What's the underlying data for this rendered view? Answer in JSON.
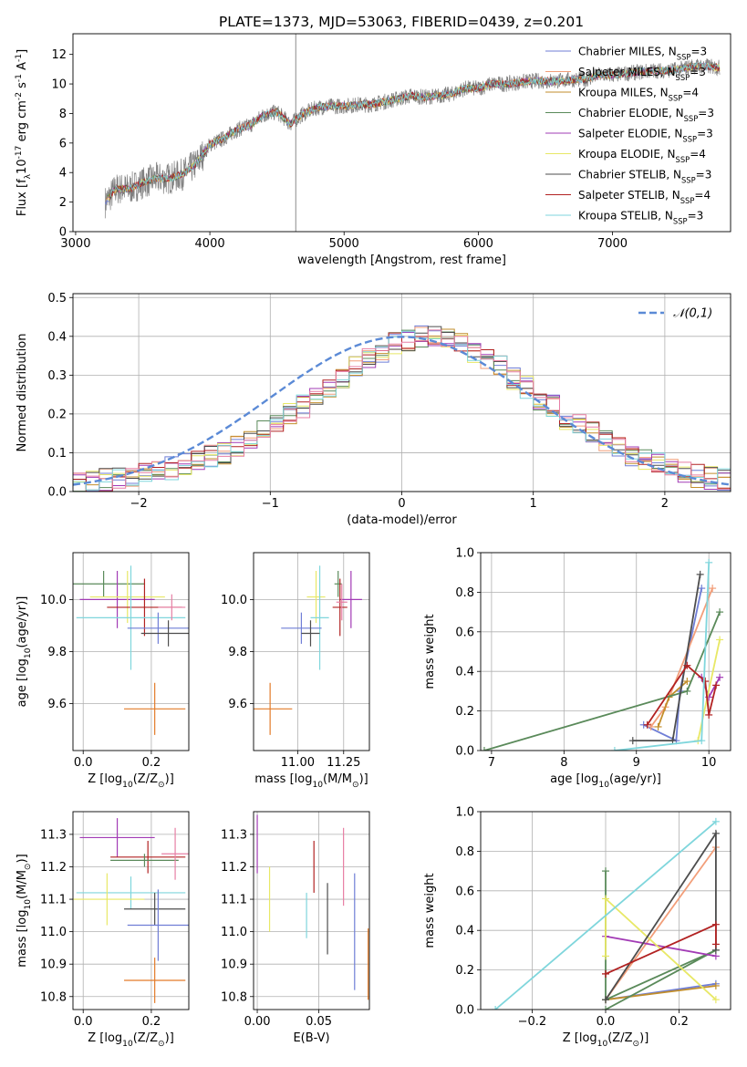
{
  "chart_data": [
    {
      "id": "spectrum",
      "type": "line",
      "title": "PLATE=1373, MJD=53063, FIBERID=0439, z=0.201",
      "xlabel": "wavelength [Angstrom, rest frame]",
      "ylabel": "Flux [f$_\\lambda$10$^{-17}$ erg cm$^{-2}$ s$^{-1}$ A$^{-1}$]",
      "xlim": [
        2980,
        7880
      ],
      "ylim": [
        0,
        13.4
      ],
      "xticks": [
        3000,
        4000,
        5000,
        6000,
        7000
      ],
      "yticks": [
        0,
        2,
        4,
        6,
        8,
        10,
        12
      ],
      "grid": false,
      "legend_position": "right",
      "data_x": [
        3220,
        3300,
        3400,
        3500,
        3600,
        3700,
        3800,
        3900,
        4000,
        4100,
        4200,
        4300,
        4400,
        4500,
        4600,
        4700,
        4800,
        4900,
        5000,
        5100,
        5200,
        5300,
        5400,
        5500,
        5600,
        5700,
        5800,
        5900,
        6000,
        6100,
        6200,
        6300,
        6400,
        6500,
        6600,
        6700,
        6800,
        6900,
        7000,
        7100,
        7200,
        7300,
        7400,
        7500,
        7600,
        7700,
        7800
      ],
      "data_y": [
        2.0,
        2.9,
        2.9,
        3.3,
        3.6,
        3.6,
        3.9,
        4.6,
        5.9,
        6.3,
        6.9,
        7.2,
        7.9,
        8.1,
        7.3,
        8.0,
        8.4,
        8.5,
        8.5,
        8.6,
        8.6,
        8.8,
        9.0,
        9.2,
        9.1,
        9.2,
        9.3,
        9.7,
        9.7,
        10.0,
        10.0,
        10.1,
        10.2,
        10.2,
        10.2,
        10.3,
        10.3,
        10.6,
        10.6,
        10.7,
        10.8,
        10.9,
        10.9,
        11.0,
        11.2,
        11.2,
        11.1
      ],
      "data_color": "#808080",
      "series": [
        {
          "name": "Chabrier MILES, N$_{SSP}$=3",
          "color": "#6f7ed6"
        },
        {
          "name": "Salpeter MILES, N$_{SSP}$=3",
          "color": "#f29e79"
        },
        {
          "name": "Kroupa MILES, N$_{SSP}$=4",
          "color": "#c28e2b"
        },
        {
          "name": "Chabrier ELODIE, N$_{SSP}$=3",
          "color": "#5a8a5a"
        },
        {
          "name": "Salpeter ELODIE, N$_{SSP}$=3",
          "color": "#a23bb5"
        },
        {
          "name": "Kroupa ELODIE, N$_{SSP}$=4",
          "color": "#e8e866"
        },
        {
          "name": "Chabrier STELIB, N$_{SSP}$=3",
          "color": "#4d4d4d"
        },
        {
          "name": "Salpeter STELIB, N$_{SSP}$=4",
          "color": "#b22222"
        },
        {
          "name": "Kroupa STELIB, N$_{SSP}$=3",
          "color": "#7fd6dc"
        }
      ]
    },
    {
      "id": "residuals",
      "type": "line",
      "xlabel": "(data-model)/error",
      "ylabel": "Normed distribution",
      "xlim": [
        -2.5,
        2.5
      ],
      "ylim": [
        0,
        0.51
      ],
      "xticks": [
        -2,
        -1,
        0,
        1,
        2
      ],
      "yticks": [
        0.0,
        0.1,
        0.2,
        0.3,
        0.4,
        0.5
      ],
      "grid": true,
      "legend_position": "top-right",
      "gaussian_label": "$\\mathcal{N}(0,1)$",
      "gaussian_color": "#5b8ad6",
      "bin_edges_start": -2.5,
      "bin_width": 0.1,
      "hist_base": [
        0.02,
        0.025,
        0.03,
        0.035,
        0.04,
        0.045,
        0.05,
        0.06,
        0.07,
        0.08,
        0.09,
        0.1,
        0.12,
        0.14,
        0.16,
        0.18,
        0.2,
        0.22,
        0.24,
        0.27,
        0.29,
        0.32,
        0.34,
        0.36,
        0.38,
        0.39,
        0.4,
        0.4,
        0.39,
        0.38,
        0.36,
        0.34,
        0.32,
        0.29,
        0.27,
        0.24,
        0.22,
        0.19,
        0.17,
        0.15,
        0.13,
        0.11,
        0.09,
        0.08,
        0.07,
        0.06,
        0.05,
        0.04,
        0.035,
        0.03
      ],
      "hist_colors": [
        "#6f7ed6",
        "#f29e79",
        "#c28e2b",
        "#5a8a5a",
        "#a23bb5",
        "#e8e866",
        "#4d4d4d",
        "#b22222",
        "#7fd6dc",
        "#e77fa4"
      ]
    },
    {
      "id": "z-age",
      "type": "scatter",
      "xlabel": "Z [log$_{10}$(Z/Z$_\\odot$)]",
      "ylabel": "age  [log$_{10}$(age/yr)]",
      "xlim": [
        -0.03,
        0.31
      ],
      "ylim": [
        9.42,
        10.18
      ],
      "xticks": [
        0.0,
        0.2
      ],
      "yticks": [
        9.6,
        9.8,
        10.0
      ],
      "grid": true,
      "points": [
        {
          "x": 0.06,
          "y": 10.06,
          "xerr": 0.12,
          "yerr": 0.05,
          "color": "#5a8a5a"
        },
        {
          "x": 0.1,
          "y": 10.0,
          "xerr": 0.11,
          "yerr": 0.11,
          "color": "#a23bb5"
        },
        {
          "x": 0.13,
          "y": 10.01,
          "xerr": 0.11,
          "yerr": 0.1,
          "color": "#e8e866"
        },
        {
          "x": 0.18,
          "y": 9.97,
          "xerr": 0.11,
          "yerr": 0.11,
          "color": "#b22222"
        },
        {
          "x": 0.14,
          "y": 9.93,
          "xerr": 0.16,
          "yerr": 0.2,
          "color": "#7fd6dc"
        },
        {
          "x": 0.22,
          "y": 9.89,
          "xerr": 0.09,
          "yerr": 0.06,
          "color": "#6f7ed6"
        },
        {
          "x": 0.25,
          "y": 9.87,
          "xerr": 0.08,
          "yerr": 0.05,
          "color": "#4d4d4d"
        },
        {
          "x": 0.26,
          "y": 9.97,
          "xerr": 0.04,
          "yerr": 0.05,
          "color": "#e77fa4"
        },
        {
          "x": 0.21,
          "y": 9.58,
          "xerr": 0.09,
          "yerr": 0.1,
          "color": "#e37b29"
        }
      ]
    },
    {
      "id": "mass-age",
      "type": "scatter",
      "xlabel": "mass [log$_{10}$(M/M$_\\odot$)]",
      "ylabel": "",
      "xlim": [
        10.76,
        11.39
      ],
      "ylim": [
        9.42,
        10.18
      ],
      "xticks": [
        11.0,
        11.25
      ],
      "yticks": [
        9.6,
        9.8,
        10.0
      ],
      "grid": true,
      "points": [
        {
          "x": 11.22,
          "y": 10.06,
          "xerr": 0.02,
          "yerr": 0.05,
          "color": "#5a8a5a"
        },
        {
          "x": 11.29,
          "y": 10.0,
          "xerr": 0.06,
          "yerr": 0.11,
          "color": "#a23bb5"
        },
        {
          "x": 11.1,
          "y": 10.01,
          "xerr": 0.05,
          "yerr": 0.1,
          "color": "#e8e866"
        },
        {
          "x": 11.23,
          "y": 9.97,
          "xerr": 0.04,
          "yerr": 0.11,
          "color": "#b22222"
        },
        {
          "x": 11.12,
          "y": 9.93,
          "xerr": 0.05,
          "yerr": 0.2,
          "color": "#7fd6dc"
        },
        {
          "x": 11.02,
          "y": 9.89,
          "xerr": 0.11,
          "yerr": 0.06,
          "color": "#6f7ed6"
        },
        {
          "x": 11.07,
          "y": 9.87,
          "xerr": 0.05,
          "yerr": 0.05,
          "color": "#4d4d4d"
        },
        {
          "x": 11.24,
          "y": 9.99,
          "xerr": 0.03,
          "yerr": 0.07,
          "color": "#e77fa4"
        },
        {
          "x": 10.85,
          "y": 9.58,
          "xerr": 0.12,
          "yerr": 0.1,
          "color": "#e37b29"
        }
      ]
    },
    {
      "id": "age-weight",
      "type": "line",
      "xlabel": "age  [log$_{10}$(age/yr)]",
      "ylabel": "mass weight",
      "xlim": [
        6.85,
        10.3
      ],
      "ylim": [
        0,
        1.0
      ],
      "xticks": [
        7,
        8,
        9,
        10
      ],
      "yticks": [
        0.0,
        0.2,
        0.4,
        0.6,
        0.8,
        1.0
      ],
      "grid": true,
      "series": [
        {
          "color": "#6f7ed6",
          "x": [
            9.1,
            9.55,
            9.6,
            9.9
          ],
          "y": [
            0.13,
            0.05,
            0.3,
            0.82
          ]
        },
        {
          "color": "#f29e79",
          "x": [
            9.2,
            9.4,
            10.05
          ],
          "y": [
            0.12,
            0.22,
            0.82
          ]
        },
        {
          "color": "#c28e2b",
          "x": [
            9.3,
            9.45,
            9.7
          ],
          "y": [
            0.12,
            0.27,
            0.35
          ]
        },
        {
          "color": "#5a8a5a",
          "x": [
            6.9,
            9.7,
            10.15
          ],
          "y": [
            0.0,
            0.3,
            0.7
          ]
        },
        {
          "color": "#a23bb5",
          "x": [
            9.9,
            10.0,
            10.15
          ],
          "y": [
            0.37,
            0.27,
            0.37
          ]
        },
        {
          "color": "#e8e866",
          "x": [
            9.85,
            10.15
          ],
          "y": [
            0.05,
            0.56
          ]
        },
        {
          "color": "#4d4d4d",
          "x": [
            8.95,
            9.5,
            9.88
          ],
          "y": [
            0.05,
            0.05,
            0.89
          ]
        },
        {
          "color": "#b22222",
          "x": [
            9.15,
            9.7,
            9.95,
            10.0,
            10.1
          ],
          "y": [
            0.13,
            0.43,
            0.35,
            0.18,
            0.33
          ]
        },
        {
          "color": "#7fd6dc",
          "x": [
            8.7,
            9.9,
            10.0
          ],
          "y": [
            0.0,
            0.05,
            0.95
          ]
        }
      ]
    },
    {
      "id": "z-mass",
      "type": "scatter",
      "xlabel": "Z [log$_{10}$(Z/Z$_\\odot$)]",
      "ylabel": "mass [log$_{10}$(M/M$_\\odot$)]",
      "xlim": [
        -0.03,
        0.31
      ],
      "ylim": [
        10.76,
        11.37
      ],
      "xticks": [
        0.0,
        0.2
      ],
      "yticks": [
        10.8,
        10.9,
        11.0,
        11.1,
        11.2,
        11.3
      ],
      "grid": true,
      "points": [
        {
          "x": 0.1,
          "y": 11.29,
          "xerr": 0.11,
          "yerr": 0.06,
          "color": "#a23bb5"
        },
        {
          "x": 0.19,
          "y": 11.23,
          "xerr": 0.11,
          "yerr": 0.05,
          "color": "#b22222"
        },
        {
          "x": 0.18,
          "y": 11.22,
          "xerr": 0.1,
          "yerr": 0.02,
          "color": "#5a8a5a"
        },
        {
          "x": 0.27,
          "y": 11.24,
          "xerr": 0.04,
          "yerr": 0.08,
          "color": "#e77fa4"
        },
        {
          "x": 0.14,
          "y": 11.12,
          "xerr": 0.16,
          "yerr": 0.05,
          "color": "#7fd6dc"
        },
        {
          "x": 0.07,
          "y": 11.1,
          "xerr": 0.11,
          "yerr": 0.08,
          "color": "#e8e866"
        },
        {
          "x": 0.21,
          "y": 11.07,
          "xerr": 0.09,
          "yerr": 0.05,
          "color": "#4d4d4d"
        },
        {
          "x": 0.22,
          "y": 11.02,
          "xerr": 0.09,
          "yerr": 0.11,
          "color": "#6f7ed6"
        },
        {
          "x": 0.21,
          "y": 10.85,
          "xerr": 0.09,
          "yerr": 0.07,
          "color": "#e37b29"
        }
      ]
    },
    {
      "id": "ebv-mass",
      "type": "scatter",
      "xlabel": "E(B-V)",
      "ylabel": "",
      "xlim": [
        -0.003,
        0.091
      ],
      "ylim": [
        10.76,
        11.37
      ],
      "xticks": [
        0.0,
        0.05
      ],
      "xtick_labels": [
        "0.00",
        "0.05"
      ],
      "yticks": [
        10.8,
        10.9,
        11.0,
        11.1,
        11.2,
        11.3
      ],
      "grid": true,
      "points": [
        {
          "x": 0.0,
          "y": 11.27,
          "yerr": 0.09,
          "color": "#a23bb5"
        },
        {
          "x": 0.01,
          "y": 11.1,
          "yerr": 0.1,
          "color": "#e8e866"
        },
        {
          "x": 0.04,
          "y": 11.05,
          "yerr": 0.07,
          "color": "#7fd6dc"
        },
        {
          "x": 0.046,
          "y": 11.2,
          "yerr": 0.08,
          "color": "#b22222"
        },
        {
          "x": 0.057,
          "y": 11.04,
          "yerr": 0.11,
          "color": "#4d4d4d"
        },
        {
          "x": 0.07,
          "y": 11.2,
          "yerr": 0.12,
          "color": "#e77fa4"
        },
        {
          "x": 0.079,
          "y": 11.0,
          "yerr": 0.18,
          "color": "#6f7ed6"
        },
        {
          "x": 0.09,
          "y": 10.9,
          "yerr": 0.11,
          "color": "#e37b29"
        }
      ]
    },
    {
      "id": "z-weight",
      "type": "line",
      "xlabel": "Z [log$_{10}$(Z/Z$_\\odot$)]",
      "ylabel": "mass weight",
      "xlim": [
        -0.34,
        0.34
      ],
      "ylim": [
        0,
        1.0
      ],
      "xticks": [
        -0.2,
        0.0,
        0.2
      ],
      "yticks": [
        0.0,
        0.2,
        0.4,
        0.6,
        0.8,
        1.0
      ],
      "grid": true,
      "series": [
        {
          "color": "#6f7ed6",
          "x": [
            0.0,
            0.3
          ],
          "y": [
            0.05,
            0.13
          ]
        },
        {
          "color": "#f29e79",
          "x": [
            0.0,
            0.3
          ],
          "y": [
            0.05,
            0.82
          ]
        },
        {
          "color": "#c28e2b",
          "x": [
            0.0,
            0.3
          ],
          "y": [
            0.05,
            0.12
          ]
        },
        {
          "color": "#5a8a5a",
          "x": [
            0.0,
            0.0,
            0.3,
            0.0
          ],
          "y": [
            0.7,
            0.05,
            0.3,
            0.0
          ]
        },
        {
          "color": "#a23bb5",
          "x": [
            0.0,
            0.3
          ],
          "y": [
            0.37,
            0.27
          ]
        },
        {
          "color": "#e8e866",
          "x": [
            0.0,
            0.0,
            0.3
          ],
          "y": [
            0.27,
            0.56,
            0.05
          ]
        },
        {
          "color": "#4d4d4d",
          "x": [
            0.0,
            0.3,
            0.3
          ],
          "y": [
            0.05,
            0.89,
            0.3
          ]
        },
        {
          "color": "#b22222",
          "x": [
            0.0,
            0.0,
            0.3,
            0.3
          ],
          "y": [
            0.18,
            0.18,
            0.43,
            0.33
          ]
        },
        {
          "color": "#7fd6dc",
          "x": [
            -0.3,
            0.3
          ],
          "y": [
            0.0,
            0.95
          ]
        }
      ]
    }
  ]
}
